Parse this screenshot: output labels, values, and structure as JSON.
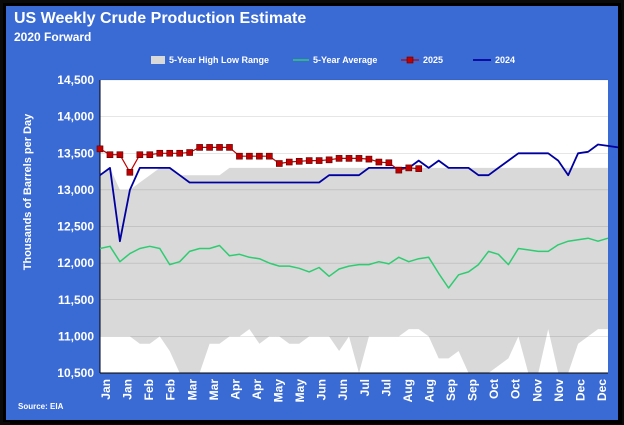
{
  "header": {
    "title": "US Weekly Crude Production Estimate",
    "subtitle": "2020 Forward",
    "source": "Source: EIA"
  },
  "chart_data": {
    "type": "line",
    "title": "US Weekly Crude Production Estimate",
    "subtitle": "2020 Forward",
    "ylabel": "Thousands of Barrels per Day",
    "xlabel": "",
    "ylim": [
      10500,
      14500
    ],
    "yticks": [
      10500,
      11000,
      11500,
      12000,
      12500,
      13000,
      13500,
      14000,
      14500
    ],
    "ytick_labels": [
      "10,500",
      "11,000",
      "11,500",
      "12,000",
      "12,500",
      "13,000",
      "13,500",
      "14,000",
      "14,500"
    ],
    "xtick_labels": [
      "Jan",
      "Jan",
      "Feb",
      "Feb",
      "Mar",
      "Mar",
      "Apr",
      "Apr",
      "May",
      "May",
      "Jun",
      "Jun",
      "Jul",
      "Jul",
      "Aug",
      "Aug",
      "Sep",
      "Sep",
      "Oct",
      "Oct",
      "Nov",
      "Nov",
      "Dec",
      "Dec"
    ],
    "grid": true,
    "legend_position": "top",
    "colors": {
      "plot_bg": "#ffffff",
      "range": "#d9d9d9",
      "avg": "#2ecc71",
      "y2025_line": "#c00000",
      "y2025_marker": "#c00000",
      "y2024": "#0000a0",
      "panel": "#3a6ad4"
    },
    "series": [
      {
        "name": "5-Year High Low Range",
        "type": "area",
        "high": [
          13200,
          13300,
          13000,
          13000,
          13100,
          13200,
          13300,
          13300,
          13200,
          13200,
          13200,
          13200,
          13200,
          13300,
          13300,
          13300,
          13300,
          13300,
          13300,
          13300,
          13300,
          13300,
          13300,
          13300,
          13300,
          13300,
          13300,
          13300,
          13300,
          13300,
          13300,
          13300,
          13300,
          13300,
          13300,
          13300,
          13300,
          13300,
          13300,
          13300,
          13300,
          13300,
          13300,
          13300,
          13300,
          13300,
          13300,
          13300,
          13300,
          13300,
          13300,
          13300
        ],
        "low": [
          11000,
          11000,
          11000,
          11000,
          10900,
          10900,
          11000,
          10800,
          10300,
          10400,
          10500,
          10900,
          10900,
          11000,
          11000,
          11100,
          10900,
          11000,
          11000,
          10900,
          10900,
          11000,
          11000,
          11000,
          10800,
          11000,
          10500,
          11000,
          11000,
          11000,
          11000,
          11100,
          11100,
          11000,
          10700,
          10700,
          10800,
          10400,
          10300,
          10300,
          10600,
          10700,
          11000,
          10500,
          10300,
          11100,
          10500,
          10300,
          10900,
          11000,
          11100,
          11100
        ]
      },
      {
        "name": "5-Year Average",
        "values": [
          12200,
          12230,
          12020,
          12130,
          12200,
          12230,
          12200,
          11980,
          12020,
          12160,
          12200,
          12200,
          12240,
          12100,
          12120,
          12080,
          12060,
          12000,
          11960,
          11960,
          11930,
          11880,
          11940,
          11820,
          11920,
          11960,
          11980,
          11980,
          12020,
          11990,
          12080,
          12020,
          12060,
          12080,
          11860,
          11660,
          11840,
          11880,
          11980,
          12160,
          12120,
          11980,
          12200,
          12180,
          12160,
          12160,
          12250,
          12300,
          12320,
          12340,
          12300,
          12340
        ]
      },
      {
        "name": "2025",
        "values": [
          13560,
          13480,
          13480,
          13240,
          13480,
          13480,
          13500,
          13500,
          13500,
          13510,
          13580,
          13580,
          13580,
          13580,
          13460,
          13460,
          13460,
          13460,
          13360,
          13380,
          13390,
          13400,
          13400,
          13410,
          13430,
          13430,
          13430,
          13420,
          13380,
          13370,
          13270,
          13300,
          13290
        ]
      },
      {
        "name": "2024",
        "values": [
          13200,
          13300,
          12300,
          13000,
          13300,
          13300,
          13300,
          13300,
          13200,
          13100,
          13100,
          13100,
          13100,
          13100,
          13100,
          13100,
          13100,
          13100,
          13100,
          13100,
          13100,
          13100,
          13100,
          13200,
          13200,
          13200,
          13200,
          13300,
          13300,
          13300,
          13300,
          13300,
          13400,
          13300,
          13400,
          13300,
          13300,
          13300,
          13200,
          13200,
          13300,
          13400,
          13500,
          13500,
          13500,
          13500,
          13400,
          13200,
          13500,
          13520,
          13620,
          13600,
          13580
        ]
      }
    ]
  }
}
